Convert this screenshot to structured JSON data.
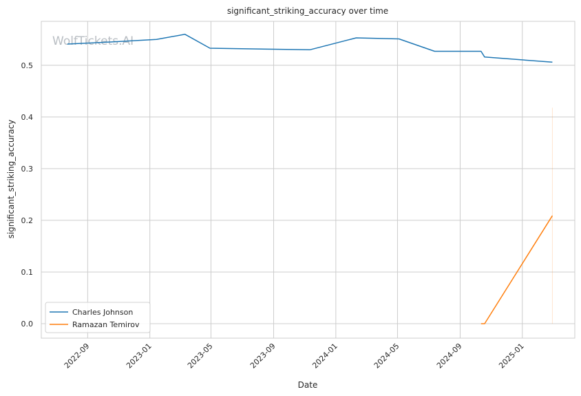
{
  "chart_data": {
    "type": "line",
    "title": "significant_striking_accuracy over time",
    "xlabel": "Date",
    "ylabel": "significant_striking_accuracy",
    "watermark": "WolfTickets.AI",
    "x_ticks": [
      "2022-09",
      "2023-01",
      "2023-05",
      "2023-09",
      "2024-01",
      "2024-05",
      "2024-09",
      "2025-01"
    ],
    "y_ticks": [
      "0.0",
      "0.1",
      "0.2",
      "0.3",
      "0.4",
      "0.5"
    ],
    "ylim": [
      -0.028,
      0.585
    ],
    "xlim": [
      "2022-06-02",
      "2025-04-14"
    ],
    "grid": true,
    "legend_position": "lower-left",
    "series": [
      {
        "name": "Charles Johnson",
        "color": "#1f77b4",
        "points": [
          [
            "2022-07-23",
            0.541
          ],
          [
            "2022-10-15",
            0.545
          ],
          [
            "2023-01-14",
            0.55
          ],
          [
            "2023-03-11",
            0.56
          ],
          [
            "2023-04-29",
            0.533
          ],
          [
            "2023-11-11",
            0.53
          ],
          [
            "2024-02-10",
            0.553
          ],
          [
            "2024-05-04",
            0.551
          ],
          [
            "2024-07-13",
            0.527
          ],
          [
            "2024-10-12",
            0.527
          ],
          [
            "2024-10-19",
            0.516
          ],
          [
            "2025-03-01",
            0.506
          ]
        ]
      },
      {
        "name": "Ramazan Temirov",
        "color": "#ff7f0e",
        "points": [
          [
            "2024-10-12",
            0.0
          ],
          [
            "2024-10-19",
            0.0
          ],
          [
            "2025-03-01",
            0.209
          ]
        ],
        "band": {
          "x": "2025-03-01",
          "low": 0.0,
          "high": 0.418
        }
      }
    ]
  }
}
